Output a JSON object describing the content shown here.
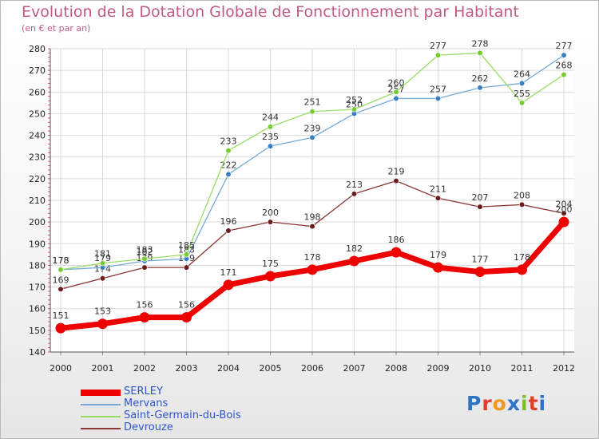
{
  "header": {
    "title": "Evolution de la Dotation Globale de Fonctionnement par Habitant",
    "subtitle": "(en € et par an)"
  },
  "logo": {
    "text": "Proxiti",
    "letters": [
      "P",
      "r",
      "o",
      "x",
      "i",
      "t",
      "i"
    ],
    "colors": [
      "#2f73c4",
      "#e0402c",
      "#f09a1a",
      "#2f73c4",
      "#7cbd2b",
      "#e0402c",
      "#2f73c4"
    ]
  },
  "chart_data": {
    "type": "line",
    "title": "Evolution de la Dotation Globale de Fonctionnement par Habitant",
    "subtitle": "(en € et par an)",
    "xlabel": "",
    "ylabel": "",
    "ylim": [
      140,
      280
    ],
    "yticks": [
      140,
      150,
      160,
      170,
      180,
      190,
      200,
      210,
      220,
      230,
      240,
      250,
      260,
      270,
      280
    ],
    "grid": true,
    "legend_position": "bottom-left",
    "categories": [
      "2000",
      "2001",
      "2002",
      "2003",
      "2004",
      "2005",
      "2006",
      "2007",
      "2008",
      "2009",
      "2010",
      "2011",
      "2012"
    ],
    "series": [
      {
        "name": "SERLEY",
        "color": "#ee0000",
        "values": [
          151,
          153,
          156,
          156,
          171,
          175,
          178,
          182,
          186,
          179,
          177,
          178,
          200
        ],
        "labels_above": true
      },
      {
        "name": "Mervans",
        "color": "#74a9d6",
        "marker": "#3a7fc4",
        "values": [
          178,
          179,
          182,
          183,
          222,
          235,
          239,
          250,
          257,
          257,
          262,
          264,
          277
        ],
        "labels_above": true
      },
      {
        "name": "Saint-Germain-du-Bois",
        "color": "#99dd66",
        "marker": "#77cc33",
        "values": [
          178,
          181,
          183,
          185,
          233,
          244,
          251,
          252,
          260,
          277,
          278,
          255,
          268
        ],
        "labels_above": true
      },
      {
        "name": "Devrouze",
        "color": "#8b3535",
        "marker": "#6b1d1d",
        "values": [
          169,
          174,
          179,
          179,
          196,
          200,
          198,
          213,
          219,
          211,
          207,
          208,
          204
        ],
        "labels_above": true
      }
    ]
  }
}
